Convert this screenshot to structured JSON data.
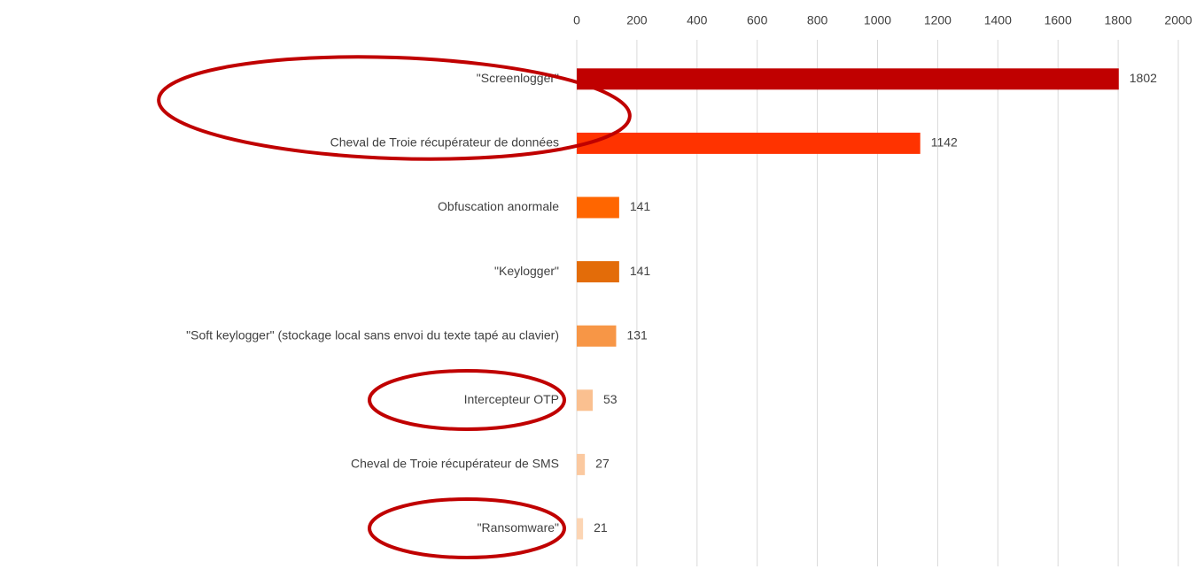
{
  "chart_data": {
    "type": "bar",
    "orientation": "horizontal",
    "categories": [
      "\"Screenlogger\"",
      "Cheval de Troie récupérateur de données",
      "Obfuscation anormale",
      "\"Keylogger\"",
      "\"Soft keylogger\" (stockage local sans envoi du texte tapé au clavier)",
      "Intercepteur OTP",
      "Cheval de Troie récupérateur de SMS",
      "\"Ransomware\""
    ],
    "values": [
      1802,
      1142,
      141,
      141,
      131,
      53,
      27,
      21
    ],
    "colors": [
      "#c00000",
      "#ff3300",
      "#ff6600",
      "#e36c09",
      "#f79646",
      "#fac090",
      "#fbc9a0",
      "#fcd5b4"
    ],
    "xlim": [
      0,
      2000
    ],
    "xticks": [
      0,
      200,
      400,
      600,
      800,
      1000,
      1200,
      1400,
      1600,
      1800,
      2000
    ],
    "grid": true,
    "axis_position": "top"
  }
}
